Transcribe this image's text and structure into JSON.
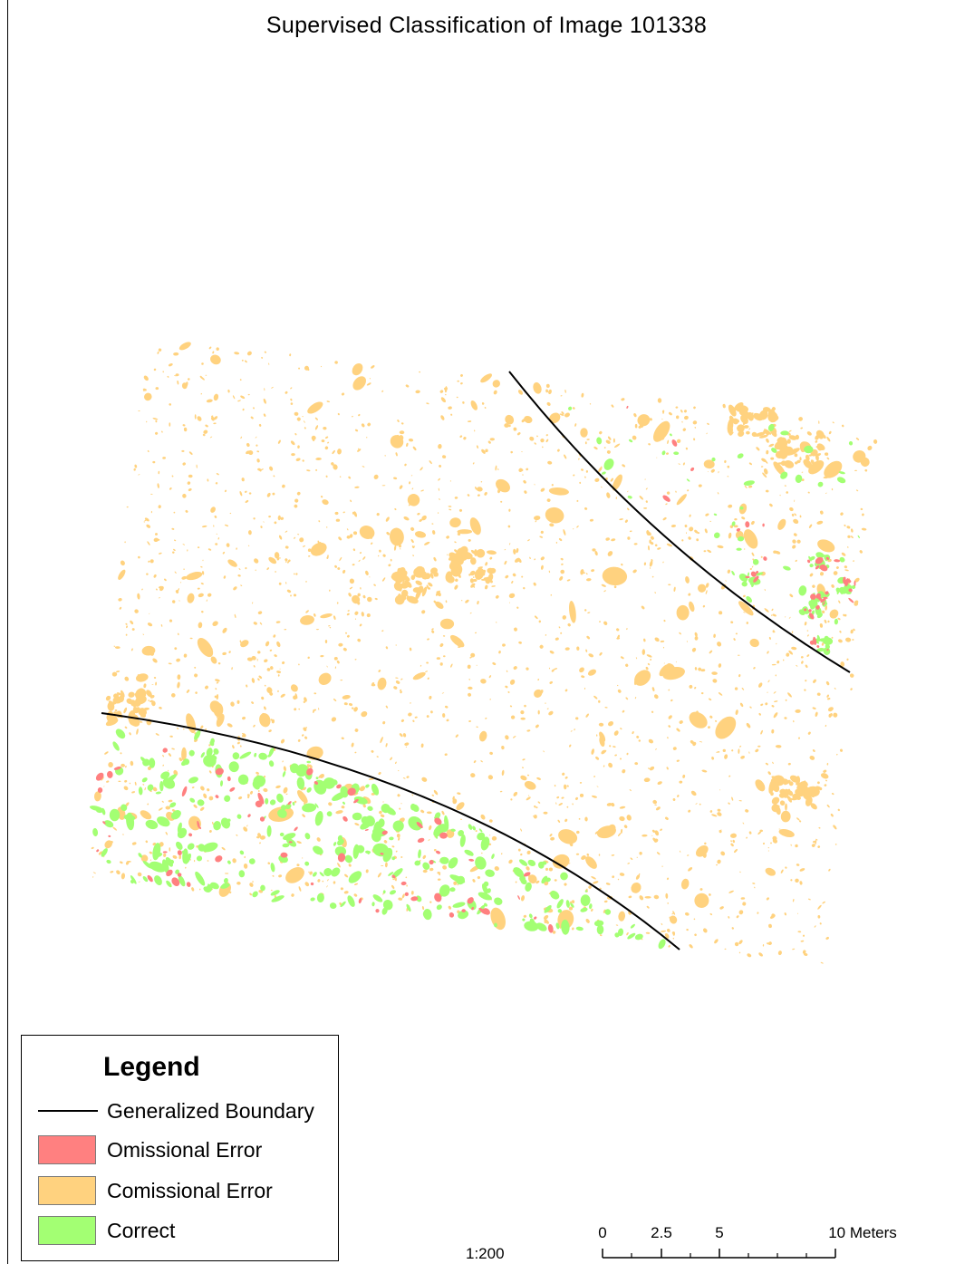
{
  "title": "Supervised Classification of Image 101338",
  "legend": {
    "title": "Legend",
    "items": [
      {
        "label": "Generalized Boundary",
        "symbol": "line",
        "color": "#000000"
      },
      {
        "label": "Omissional Error",
        "symbol": "patch",
        "color": "#ff8080"
      },
      {
        "label": "Comissional Error",
        "symbol": "patch",
        "color": "#ffd27f"
      },
      {
        "label": "Correct",
        "symbol": "patch",
        "color": "#a3ff73"
      }
    ]
  },
  "scale": {
    "ratio": "1:200",
    "labels": [
      "0",
      "2.5",
      "5",
      "10 Meters"
    ]
  },
  "colors": {
    "omission": "#ff8080",
    "commission": "#ffd27f",
    "correct": "#a3ff73",
    "boundary": "#000000"
  }
}
